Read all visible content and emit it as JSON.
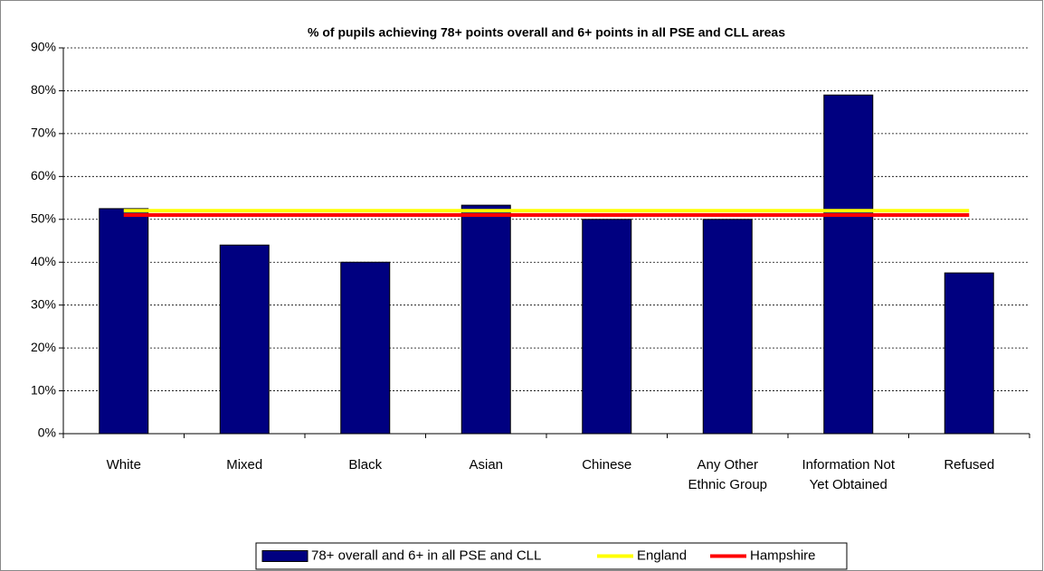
{
  "chart_data": {
    "type": "bar",
    "title": "% of pupils achieving 78+ points overall and 6+ points in all PSE and CLL areas",
    "categories": [
      "White",
      "Mixed",
      "Black",
      "Asian",
      "Chinese",
      "Any Other Ethnic Group",
      "Information Not Yet Obtained",
      "Refused"
    ],
    "series": [
      {
        "name": "78+ overall and 6+ in all PSE and CLL",
        "type": "bar",
        "color": "#000080",
        "values": [
          52.5,
          44,
          40,
          53.3,
          50,
          50,
          79,
          37.5
        ]
      },
      {
        "name": "England",
        "type": "line",
        "color": "#ffff00",
        "values": [
          52,
          52,
          52,
          52,
          52,
          52,
          52,
          52
        ]
      },
      {
        "name": "Hampshire",
        "type": "line",
        "color": "#ff0000",
        "values": [
          51,
          51,
          51,
          51,
          51,
          51,
          51,
          51
        ]
      }
    ],
    "ylim": [
      0,
      90
    ],
    "yticks": [
      {
        "value": 0,
        "label": "0%"
      },
      {
        "value": 10,
        "label": "10%"
      },
      {
        "value": 20,
        "label": "20%"
      },
      {
        "value": 30,
        "label": "30%"
      },
      {
        "value": 40,
        "label": "40%"
      },
      {
        "value": 50,
        "label": "50%"
      },
      {
        "value": 60,
        "label": "60%"
      },
      {
        "value": 70,
        "label": "70%"
      },
      {
        "value": 80,
        "label": "80%"
      },
      {
        "value": 90,
        "label": "90%"
      }
    ],
    "grid": true,
    "legend": "bottom"
  }
}
